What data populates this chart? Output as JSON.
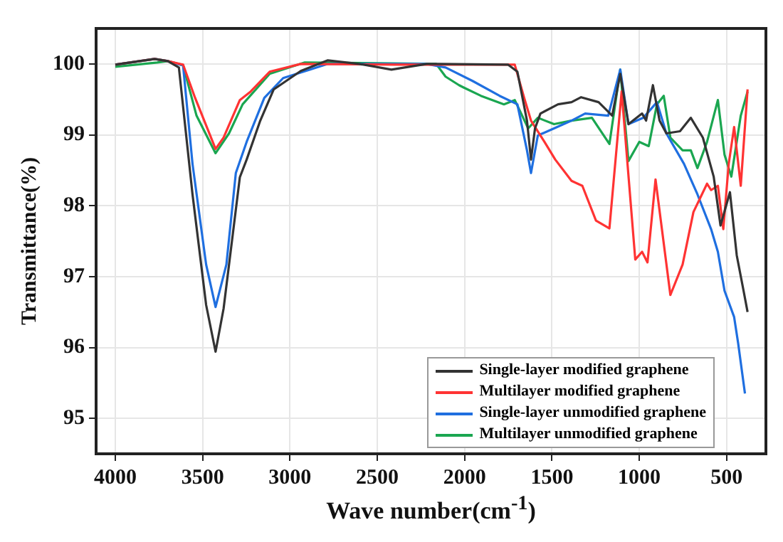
{
  "chart_data": {
    "type": "line",
    "xlabel": "Wave number(cm$^{-1}$)",
    "ylabel": "Transmittance(%)",
    "xlim": [
      4110,
      275
    ],
    "xticks": [
      4000,
      3500,
      3000,
      2500,
      2000,
      1500,
      1000,
      500
    ],
    "ylim": [
      94.5,
      100.5
    ],
    "yticks": [
      95,
      96,
      97,
      98,
      99,
      100
    ],
    "grid": true,
    "legend": "bottom right",
    "marker": "none",
    "line_style": "solid",
    "series": [
      {
        "name": "Single-layer modified graphene",
        "color": "#333333",
        "x": [
          4000,
          3775,
          3700,
          3636,
          3558,
          3480,
          3426,
          3380,
          3287,
          3248,
          3170,
          3093,
          2938,
          2783,
          2605,
          2419,
          2217,
          2163,
          1752,
          1698,
          1643,
          1620,
          1597,
          1566,
          1465,
          1388,
          1333,
          1233,
          1155,
          1109,
          1062,
          984,
          961,
          922,
          884,
          845,
          767,
          705,
          636,
          574,
          535,
          481,
          442,
          403,
          380
        ],
        "values": [
          99.99,
          100.07,
          100.04,
          99.95,
          98.16,
          96.6,
          95.94,
          96.55,
          98.4,
          98.65,
          99.2,
          99.64,
          99.9,
          100.05,
          100.0,
          99.92,
          100.0,
          100.0,
          99.99,
          99.89,
          99.2,
          98.65,
          99.09,
          99.3,
          99.43,
          99.46,
          99.53,
          99.46,
          99.27,
          99.86,
          99.15,
          99.3,
          99.2,
          99.7,
          99.2,
          99.02,
          99.05,
          99.24,
          98.96,
          98.41,
          97.72,
          98.19,
          97.3,
          96.8,
          96.5
        ]
      },
      {
        "name": "Multilayer modified graphene",
        "color": "#ff3333",
        "x": [
          4000,
          3775,
          3700,
          3612,
          3543,
          3426,
          3380,
          3287,
          3225,
          3116,
          2938,
          2400,
          1713,
          1659,
          1620,
          1543,
          1481,
          1388,
          1326,
          1248,
          1171,
          1101,
          1023,
          984,
          953,
          907,
          822,
          752,
          690,
          612,
          589,
          550,
          519,
          488,
          457,
          419,
          380
        ],
        "values": [
          99.99,
          100.07,
          100.04,
          99.99,
          99.52,
          98.8,
          98.96,
          99.49,
          99.61,
          99.89,
          100.0,
          99.99,
          99.99,
          99.52,
          99.2,
          98.9,
          98.65,
          98.35,
          98.28,
          97.79,
          97.68,
          99.61,
          97.24,
          97.35,
          97.2,
          98.37,
          96.74,
          97.17,
          97.91,
          98.31,
          98.22,
          98.28,
          97.67,
          98.59,
          99.11,
          98.28,
          99.64
        ]
      },
      {
        "name": "Single-layer unmodified graphene",
        "color": "#1f6fe0",
        "x": [
          4000,
          3775,
          3700,
          3612,
          3558,
          3480,
          3426,
          3364,
          3310,
          3248,
          3147,
          3039,
          2884,
          2783,
          2217,
          2109,
          1955,
          1800,
          1698,
          1643,
          1620,
          1581,
          1488,
          1388,
          1310,
          1178,
          1109,
          1062,
          977,
          899,
          845,
          744,
          667,
          589,
          550,
          512,
          457,
          434,
          395
        ],
        "values": [
          99.99,
          100.07,
          100.04,
          99.98,
          98.59,
          97.17,
          96.57,
          97.17,
          98.46,
          98.9,
          99.52,
          99.8,
          99.92,
          100.0,
          100.0,
          99.95,
          99.76,
          99.55,
          99.43,
          98.78,
          98.46,
          98.99,
          99.09,
          99.2,
          99.3,
          99.27,
          99.92,
          99.15,
          99.24,
          99.46,
          99.02,
          98.59,
          98.16,
          97.67,
          97.35,
          96.8,
          96.43,
          96.06,
          95.35
        ]
      },
      {
        "name": "Multilayer unmodified graphene",
        "color": "#1aa650",
        "x": [
          4000,
          3760,
          3700,
          3612,
          3535,
          3426,
          3349,
          3271,
          3116,
          2915,
          2163,
          2109,
          2032,
          2008,
          1907,
          1775,
          1713,
          1636,
          1581,
          1488,
          1388,
          1271,
          1171,
          1109,
          1062,
          1000,
          946,
          899,
          860,
          822,
          752,
          705,
          667,
          612,
          550,
          512,
          473,
          419,
          380
        ],
        "values": [
          99.96,
          100.02,
          100.04,
          99.98,
          99.27,
          98.74,
          99.02,
          99.43,
          99.86,
          100.02,
          100.0,
          99.82,
          99.7,
          99.67,
          99.55,
          99.43,
          99.49,
          99.09,
          99.24,
          99.15,
          99.2,
          99.24,
          98.87,
          99.92,
          98.63,
          98.9,
          98.84,
          99.43,
          99.55,
          98.96,
          98.78,
          98.78,
          98.53,
          98.9,
          99.49,
          98.72,
          98.41,
          99.27,
          99.61
        ]
      }
    ]
  }
}
